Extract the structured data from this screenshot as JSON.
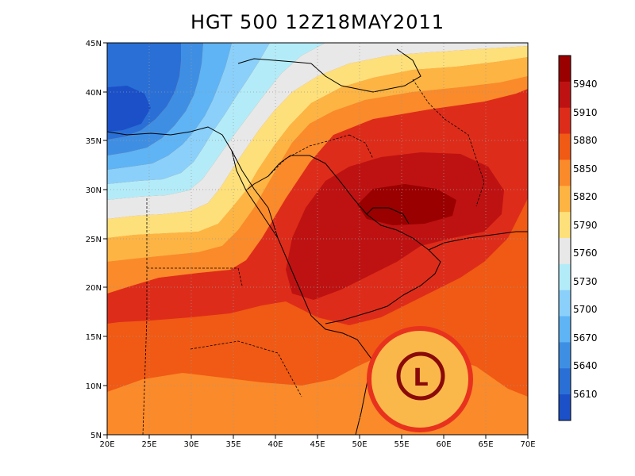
{
  "title": "HGT 500 12Z18MAY2011",
  "map": {
    "lon_labels": [
      "20E",
      "25E",
      "30E",
      "35E",
      "40E",
      "45E",
      "50E",
      "55E",
      "60E",
      "65E",
      "70E"
    ],
    "lat_labels": [
      "45N",
      "40N",
      "35N",
      "30N",
      "25N",
      "20N",
      "15N",
      "10N",
      "5N"
    ]
  },
  "colorbar": {
    "labels": [
      "5940",
      "5910",
      "5880",
      "5850",
      "5820",
      "5790",
      "5760",
      "5730",
      "5700",
      "5670",
      "5640",
      "5610"
    ],
    "colors": [
      "#9a0000",
      "#be1212",
      "#de2c1a",
      "#f05a14",
      "#fa8a2a",
      "#fdb443",
      "#fde07a",
      "#e8e8e8",
      "#b3ecf8",
      "#8ad0fa",
      "#5eb4f4",
      "#3e8fe4",
      "#2a6fd6",
      "#1b50c8"
    ]
  },
  "annotation": {
    "symbol": "L",
    "ring_color": "#e8321e",
    "letter_color": "#8a0a0a"
  }
}
